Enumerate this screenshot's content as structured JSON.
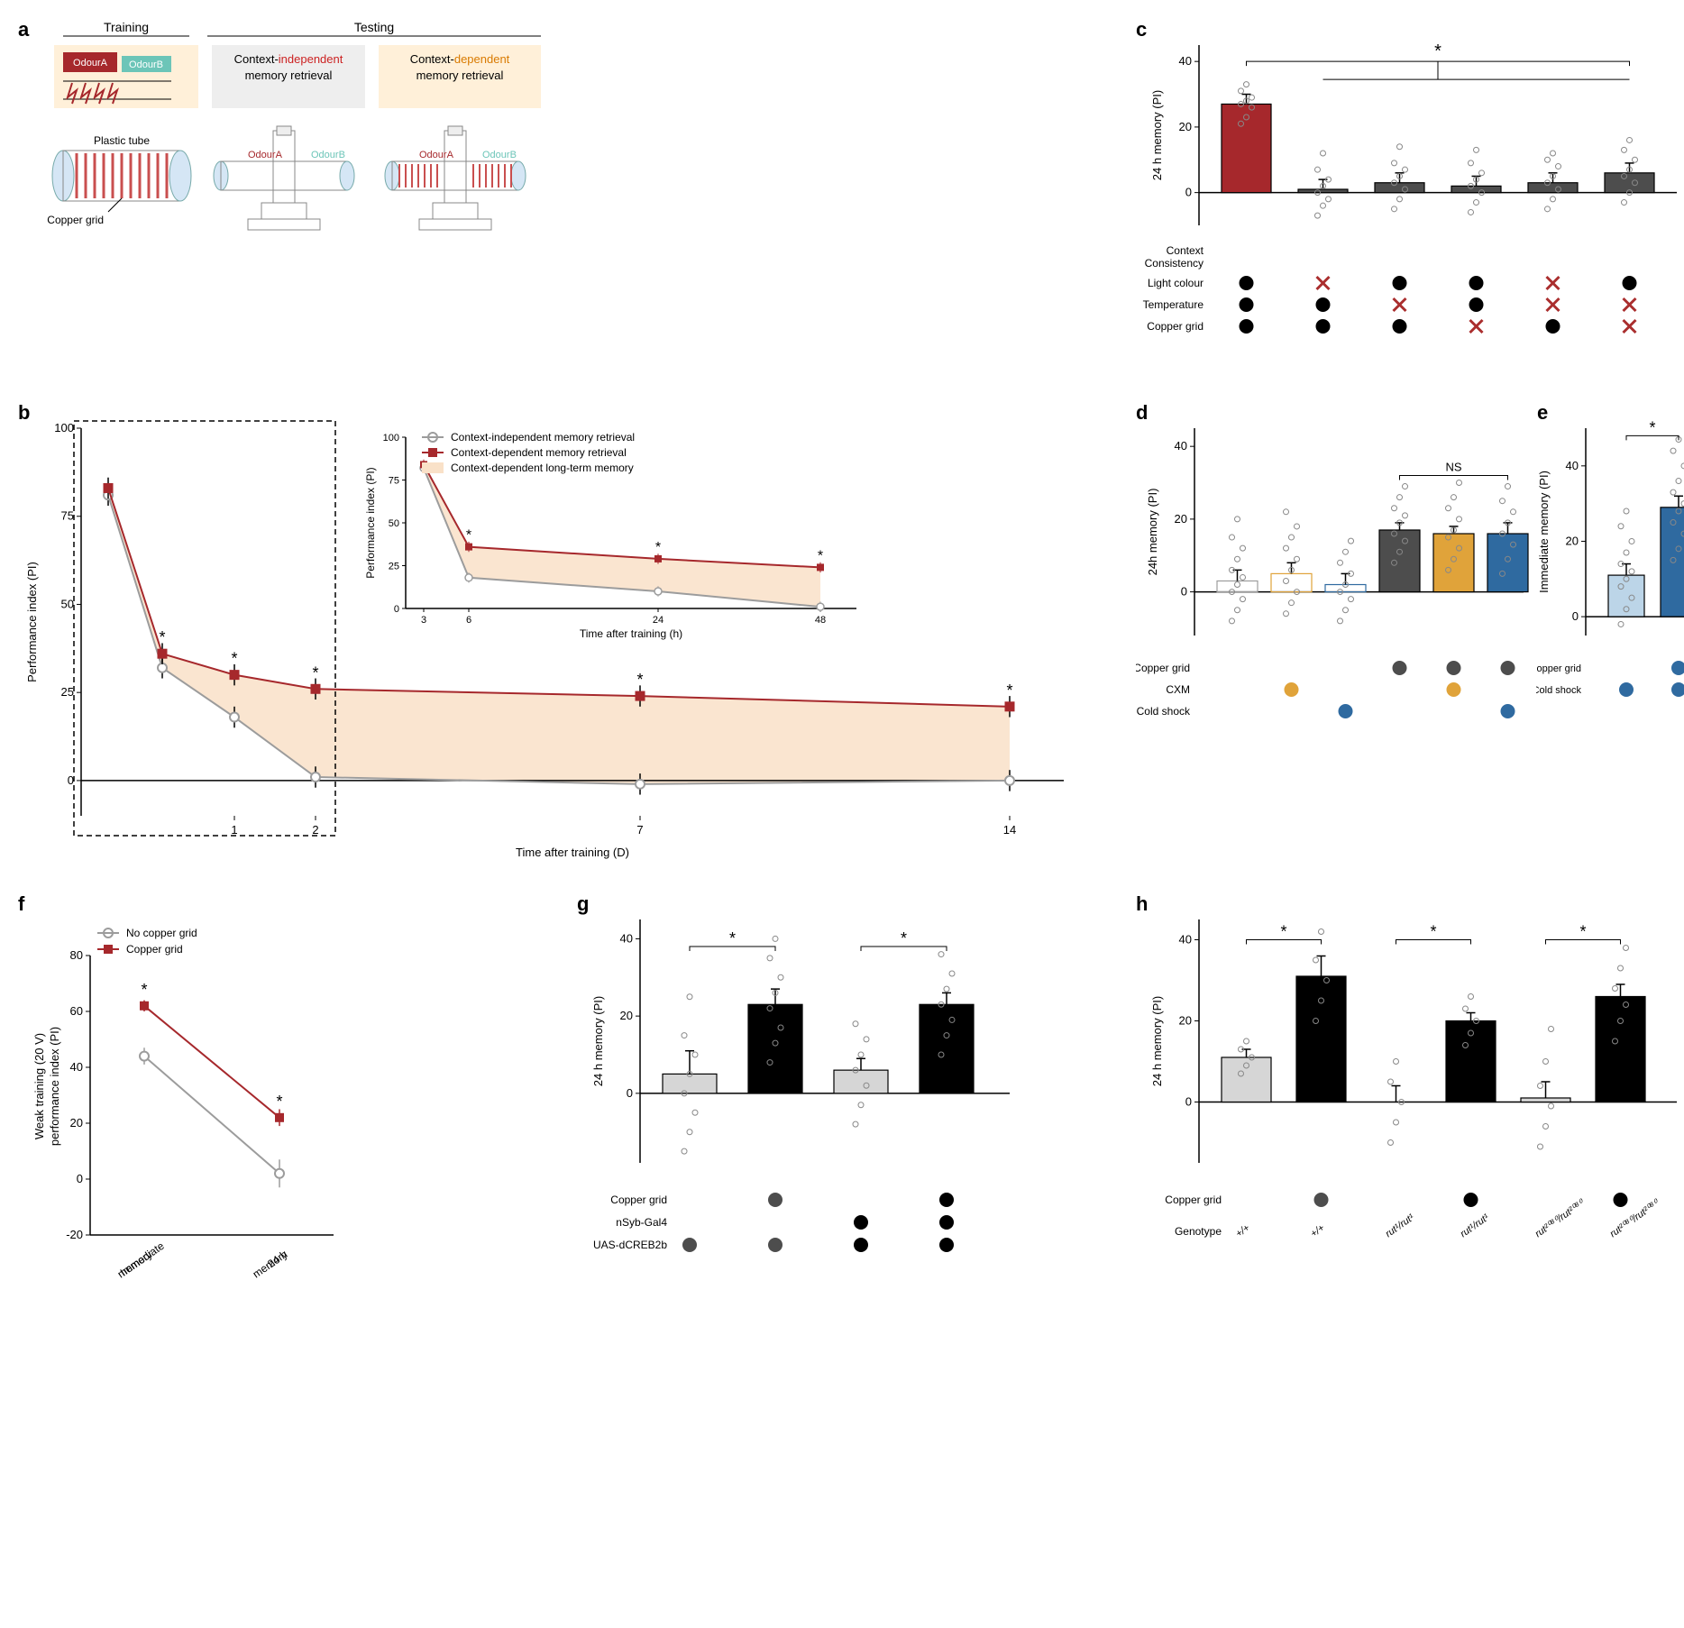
{
  "colors": {
    "red": "#a6282c",
    "darkred": "#7a1f22",
    "teal": "#6cc5b8",
    "gray": "#9c9c9c",
    "lightgray": "#d6d6d6",
    "darkgray": "#4d4d4d",
    "black": "#000000",
    "orange": "#e0a33a",
    "blue": "#2f6aa0",
    "lightblue": "#bcd5e8",
    "peach_bg": "#fde6c5",
    "gray_bg": "#eeeeee",
    "orange_bg": "#fff0d9",
    "ltm_fill": "#f9e1c8",
    "cross_red": "#aa2e2e"
  },
  "panel_a": {
    "training_label": "Training",
    "testing_label": "Testing",
    "odourA": "OdourA",
    "odourB": "OdourB",
    "plastic_tube": "Plastic tube",
    "copper_grid": "Copper grid",
    "ctx_indep_l1": "Context-",
    "ctx_indep_l2": "independent",
    "ctx_indep_l3": "memory retrieval",
    "ctx_dep_l1": "Context-",
    "ctx_dep_l2": "dependent",
    "ctx_dep_l3": "memory retrieval"
  },
  "panel_b": {
    "ylabel": "Performance index (PI)",
    "xlabel_main": "Time after training (D)",
    "xlabel_inset": "Time after training (h)",
    "legend_ci": "Context-independent memory retrieval",
    "legend_cd": "Context-dependent memory retrieval",
    "legend_ltm": "Context-dependent long-term memory",
    "main": {
      "ylim": [
        -10,
        100
      ],
      "yticks": [
        0,
        25,
        50,
        75,
        100
      ],
      "xvals": [
        0.1,
        0.25,
        1,
        2,
        7,
        14
      ],
      "xticks": [
        1,
        2,
        7,
        14
      ],
      "series_ci": [
        81,
        32,
        18,
        1,
        -1,
        0
      ],
      "series_cd": [
        83,
        36,
        30,
        26,
        24,
        21
      ],
      "err_ci": [
        3,
        3,
        3,
        3,
        3,
        3
      ],
      "err_cd": [
        3,
        3,
        3,
        3,
        3,
        3
      ],
      "sig_x": [
        0.25,
        1,
        2,
        7,
        14
      ]
    },
    "inset": {
      "ylim": [
        0,
        100
      ],
      "yticks": [
        0,
        25,
        50,
        75,
        100
      ],
      "xvals": [
        3,
        6,
        24,
        48
      ],
      "xticks": [
        3,
        6,
        24,
        48
      ],
      "series_ci": [
        82,
        18,
        10,
        1
      ],
      "series_cd": [
        84,
        36,
        29,
        24
      ],
      "err_ci": [
        3,
        3,
        3,
        3
      ],
      "err_cd": [
        3,
        3,
        3,
        3
      ],
      "sig_x": [
        6,
        24,
        48
      ]
    }
  },
  "panel_c": {
    "ylabel": "24 h memory (PI)",
    "row_labels": [
      "Context\nConsistency",
      "Light colour",
      "Temperature",
      "Copper grid"
    ],
    "bars": [
      {
        "val": 27,
        "err": 3,
        "fill": "#a6282c",
        "pts": [
          21,
          23,
          26,
          27,
          28,
          29,
          31,
          33
        ]
      },
      {
        "val": 1,
        "err": 3,
        "fill": "#4d4d4d",
        "pts": [
          -7,
          -4,
          -2,
          0,
          2,
          4,
          7,
          12
        ]
      },
      {
        "val": 3,
        "err": 3,
        "fill": "#4d4d4d",
        "pts": [
          -5,
          -2,
          1,
          3,
          5,
          7,
          9,
          14
        ]
      },
      {
        "val": 2,
        "err": 3,
        "fill": "#4d4d4d",
        "pts": [
          -6,
          -3,
          0,
          2,
          4,
          6,
          9,
          13
        ]
      },
      {
        "val": 3,
        "err": 3,
        "fill": "#4d4d4d",
        "pts": [
          -5,
          -2,
          1,
          3,
          5,
          8,
          10,
          12
        ]
      },
      {
        "val": 6,
        "err": 3,
        "fill": "#4d4d4d",
        "pts": [
          -3,
          0,
          3,
          5,
          7,
          10,
          13,
          16
        ]
      }
    ],
    "ylim": [
      -10,
      45
    ],
    "yticks": [
      0,
      20,
      40
    ],
    "matrix": [
      [
        true,
        true,
        true
      ],
      [
        false,
        true,
        true
      ],
      [
        true,
        false,
        true
      ],
      [
        true,
        true,
        false
      ],
      [
        false,
        false,
        true
      ],
      [
        true,
        false,
        false
      ]
    ],
    "sig_label": "*"
  },
  "panel_d": {
    "ylabel": "24h memory (PI)",
    "row_labels": [
      "Copper grid",
      "CXM",
      "Cold shock"
    ],
    "bars": [
      {
        "val": 3,
        "err": 3,
        "fill": "none",
        "stroke": "#9c9c9c",
        "pts": [
          -8,
          -5,
          -2,
          0,
          2,
          4,
          6,
          9,
          12,
          15,
          20
        ]
      },
      {
        "val": 5,
        "err": 3,
        "fill": "none",
        "stroke": "#e0a33a",
        "pts": [
          -6,
          -3,
          0,
          3,
          6,
          9,
          12,
          15,
          18,
          22
        ]
      },
      {
        "val": 2,
        "err": 3,
        "fill": "none",
        "stroke": "#2f6aa0",
        "pts": [
          -8,
          -5,
          -2,
          0,
          2,
          5,
          8,
          11,
          14
        ]
      },
      {
        "val": 17,
        "err": 2,
        "fill": "#4d4d4d",
        "stroke": "#000",
        "pts": [
          8,
          11,
          14,
          16,
          19,
          21,
          23,
          26,
          29
        ]
      },
      {
        "val": 16,
        "err": 2,
        "fill": "#e0a33a",
        "stroke": "#000",
        "pts": [
          6,
          9,
          12,
          15,
          17,
          20,
          23,
          26,
          30
        ]
      },
      {
        "val": 16,
        "err": 3,
        "fill": "#2f6aa0",
        "stroke": "#000",
        "pts": [
          5,
          9,
          13,
          16,
          19,
          22,
          25,
          29
        ]
      }
    ],
    "ylim": [
      -12,
      45
    ],
    "yticks": [
      0,
      20,
      40
    ],
    "matrix_cols": [
      {
        "grid": null,
        "cxm": null,
        "cold": null
      },
      {
        "grid": null,
        "cxm": "#e0a33a",
        "cold": null
      },
      {
        "grid": null,
        "cxm": null,
        "cold": "#2f6aa0"
      },
      {
        "grid": "#4d4d4d",
        "cxm": null,
        "cold": null
      },
      {
        "grid": "#4d4d4d",
        "cxm": "#e0a33a",
        "cold": null
      },
      {
        "grid": "#4d4d4d",
        "cxm": null,
        "cold": "#2f6aa0"
      }
    ],
    "ns_label": "NS"
  },
  "panel_e": {
    "ylabel": "Immediate memory (PI)",
    "row_labels": [
      "Copper grid",
      "Cold shock"
    ],
    "bars": [
      {
        "val": 11,
        "err": 3,
        "fill": "#bcd5e8",
        "pts": [
          -2,
          2,
          5,
          8,
          10,
          12,
          14,
          17,
          20,
          24,
          28
        ]
      },
      {
        "val": 29,
        "err": 3,
        "fill": "#2f6aa0",
        "pts": [
          15,
          18,
          22,
          25,
          28,
          30,
          33,
          36,
          40,
          44,
          47
        ]
      }
    ],
    "ylim": [
      -5,
      50
    ],
    "yticks": [
      0,
      20,
      40
    ],
    "matrix_cols": [
      {
        "grid": null,
        "cold": "#2f6aa0"
      },
      {
        "grid": "#2f6aa0",
        "cold": "#2f6aa0"
      }
    ],
    "sig_label": "*"
  },
  "panel_f": {
    "ylabel_l1": "Weak training (20 V)",
    "ylabel_l2": "performance index (PI)",
    "xlabels": [
      "Immediate\nmemory",
      "24 h\nmemory"
    ],
    "legend_no": "No copper grid",
    "legend_cu": "Copper grid",
    "ylim": [
      -20,
      80
    ],
    "yticks": [
      -20,
      0,
      20,
      40,
      60,
      80
    ],
    "series_no": [
      44,
      2
    ],
    "err_no": [
      3,
      5
    ],
    "series_cu": [
      62,
      22
    ],
    "err_cu": [
      2,
      3
    ]
  },
  "panel_g": {
    "ylabel": "24 h memory (PI)",
    "row_labels": [
      "Copper grid",
      "nSyb-Gal4",
      "UAS-dCREB2b"
    ],
    "bars": [
      {
        "val": 5,
        "err": 6,
        "fill": "#d6d6d6",
        "pts": [
          -15,
          -10,
          -5,
          0,
          5,
          10,
          15,
          25
        ]
      },
      {
        "val": 23,
        "err": 4,
        "fill": "#000000",
        "pts": [
          8,
          13,
          17,
          22,
          26,
          30,
          35,
          40
        ]
      },
      {
        "val": 6,
        "err": 3,
        "fill": "#d6d6d6",
        "pts": [
          -8,
          -3,
          2,
          6,
          10,
          14,
          18
        ]
      },
      {
        "val": 23,
        "err": 3,
        "fill": "#000000",
        "pts": [
          10,
          15,
          19,
          23,
          27,
          31,
          36
        ]
      }
    ],
    "ylim": [
      -18,
      45
    ],
    "yticks": [
      0,
      20,
      40
    ],
    "matrix_cols": [
      {
        "grid": null,
        "nsyb": null,
        "uas": "#4d4d4d"
      },
      {
        "grid": "#4d4d4d",
        "nsyb": null,
        "uas": "#4d4d4d"
      },
      {
        "grid": null,
        "nsyb": "#000",
        "uas": "#000"
      },
      {
        "grid": "#000",
        "nsyb": "#000",
        "uas": "#000"
      }
    ],
    "sig_label": "*"
  },
  "panel_h": {
    "ylabel": "24 h memory (PI)",
    "row_labels": [
      "Copper grid",
      "Genotype"
    ],
    "genotypes": [
      "+/+",
      "+/+",
      "rut¹/rut¹",
      "rut¹/rut¹",
      "rut²⁰⁸⁰/rut²⁰⁸⁰",
      "rut²⁰⁸⁰/rut²⁰⁸⁰"
    ],
    "bars": [
      {
        "val": 11,
        "err": 2,
        "fill": "#d6d6d6",
        "pts": [
          7,
          9,
          11,
          13,
          15
        ]
      },
      {
        "val": 31,
        "err": 5,
        "fill": "#000000",
        "pts": [
          20,
          25,
          30,
          35,
          42
        ]
      },
      {
        "val": 0,
        "err": 4,
        "fill": "#d6d6d6",
        "pts": [
          -10,
          -5,
          0,
          5,
          10
        ]
      },
      {
        "val": 20,
        "err": 2,
        "fill": "#000000",
        "pts": [
          14,
          17,
          20,
          23,
          26
        ]
      },
      {
        "val": 1,
        "err": 4,
        "fill": "#d6d6d6",
        "pts": [
          -11,
          -6,
          -1,
          4,
          10,
          18
        ]
      },
      {
        "val": 26,
        "err": 3,
        "fill": "#000000",
        "pts": [
          15,
          20,
          24,
          28,
          33,
          38
        ]
      }
    ],
    "ylim": [
      -15,
      45
    ],
    "yticks": [
      0,
      20,
      40
    ],
    "grid_dots": [
      null,
      "#4d4d4d",
      null,
      "#000",
      null,
      "#000"
    ],
    "sig_label": "*"
  }
}
